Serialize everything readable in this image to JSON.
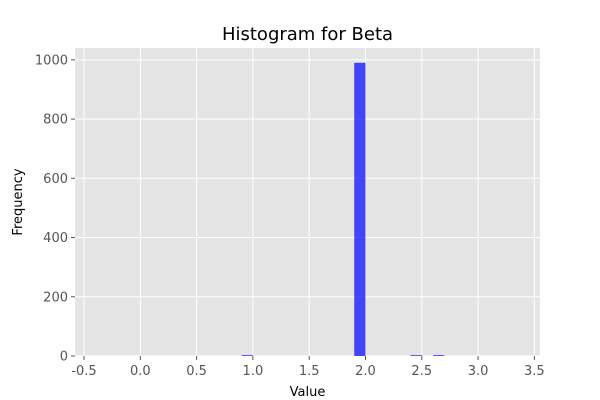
{
  "chart_data": {
    "type": "bar",
    "title": "Histogram for Beta",
    "xlabel": "Value",
    "ylabel": "Frequency",
    "xlim": [
      -0.58,
      3.55
    ],
    "ylim": [
      0,
      1040
    ],
    "x_ticks": [
      "-0.5",
      "0.0",
      "0.5",
      "1.0",
      "1.5",
      "2.0",
      "2.5",
      "3.0",
      "3.5"
    ],
    "y_ticks": [
      "0",
      "200",
      "400",
      "600",
      "800",
      "1000"
    ],
    "grid": true,
    "bar_color": "#0000ff",
    "bins": [
      {
        "x0": 0.9,
        "x1": 1.0,
        "count": 3
      },
      {
        "x0": 1.9,
        "x1": 2.0,
        "count": 990
      },
      {
        "x0": 2.4,
        "x1": 2.5,
        "count": 3
      },
      {
        "x0": 2.6,
        "x1": 2.7,
        "count": 3
      }
    ]
  }
}
